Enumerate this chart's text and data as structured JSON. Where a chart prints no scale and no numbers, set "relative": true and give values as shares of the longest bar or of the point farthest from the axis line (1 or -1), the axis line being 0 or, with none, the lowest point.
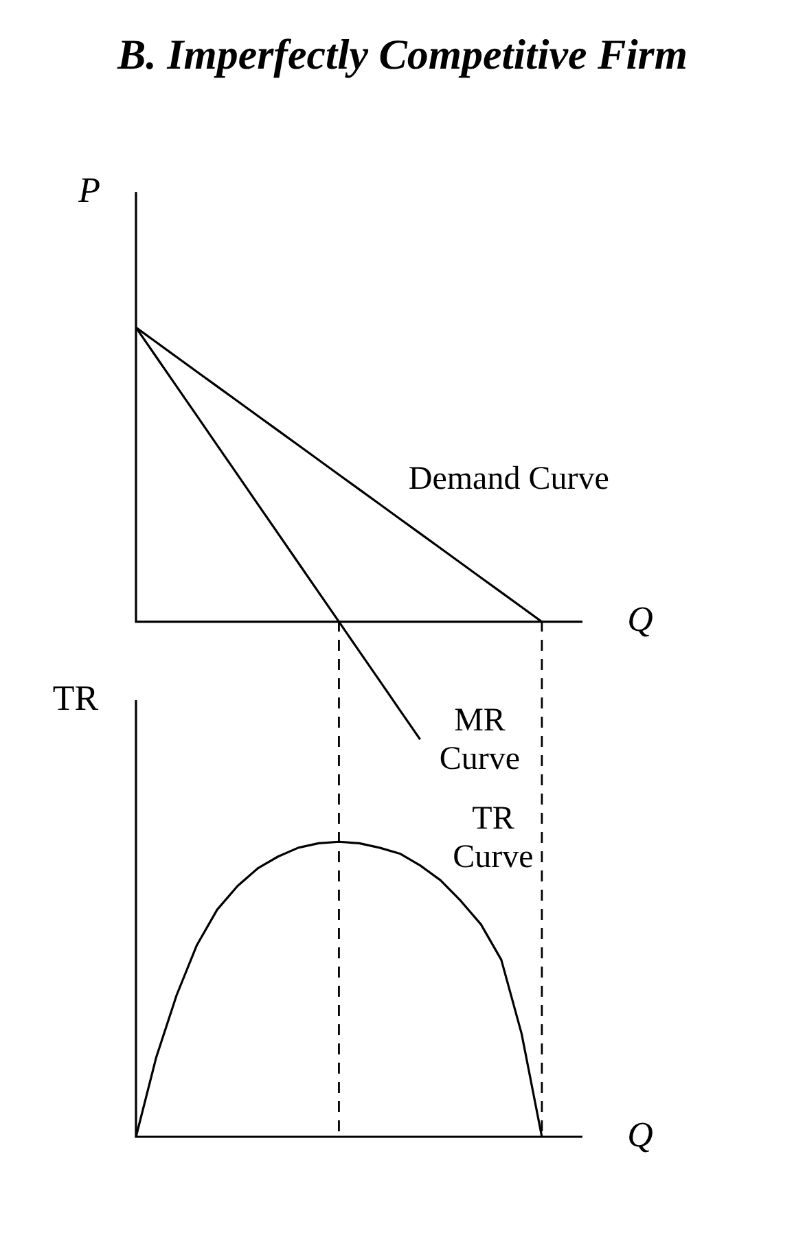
{
  "chart_data": [
    {
      "type": "line",
      "title": "B. Imperfectly Competitive Firm",
      "ylabel": "P",
      "xlabel": "Q",
      "relative": true,
      "tick_labels": false,
      "legend": false,
      "marker": "none",
      "line_style": "solid",
      "categories": [
        null,
        null,
        null,
        null,
        null,
        null,
        null,
        null,
        null,
        null,
        null,
        null,
        null,
        null,
        null,
        null,
        null,
        null,
        null,
        null,
        null,
        null,
        null
      ],
      "series": [
        {
          "color": "#000000",
          "values": [
            1,
            0.95,
            0.9,
            0.85,
            0.8,
            0.75,
            0.7,
            0.65,
            0.6,
            0.55,
            0.5,
            0.45,
            0.4,
            0.35,
            0.3,
            0.25,
            0.2,
            0.15,
            0.1,
            0.05,
            0,
            null,
            null
          ]
        },
        {
          "color": "#000000",
          "values": [
            1,
            0.9,
            0.8,
            0.7,
            0.6,
            0.5,
            0.4,
            0.3,
            0.2,
            0.1,
            0,
            -0.1,
            -0.2,
            -0.3,
            -0.4,
            null,
            null,
            null,
            null,
            null,
            null,
            null,
            null
          ]
        }
      ],
      "annotations": [
        "Demand Curve",
        "MR\nCurve"
      ]
    },
    {
      "type": "line",
      "ylabel": "TR",
      "xlabel": "Q",
      "relative": true,
      "tick_labels": false,
      "legend": false,
      "marker": "none",
      "line_style": "solid",
      "categories": [
        null,
        null,
        null,
        null,
        null,
        null,
        null,
        null,
        null,
        null,
        null,
        null,
        null,
        null,
        null,
        null,
        null,
        null,
        null,
        null,
        null,
        null,
        null
      ],
      "series": [
        {
          "color": "#000000",
          "values": [
            0,
            0.27,
            0.48,
            0.65,
            0.77,
            0.85,
            0.91,
            0.95,
            0.98,
            0.995,
            1,
            0.995,
            0.98,
            0.96,
            0.92,
            0.87,
            0.8,
            0.72,
            0.6,
            0.35,
            0,
            null,
            null
          ]
        }
      ],
      "annotations": [
        "TR\nCurve"
      ]
    }
  ]
}
